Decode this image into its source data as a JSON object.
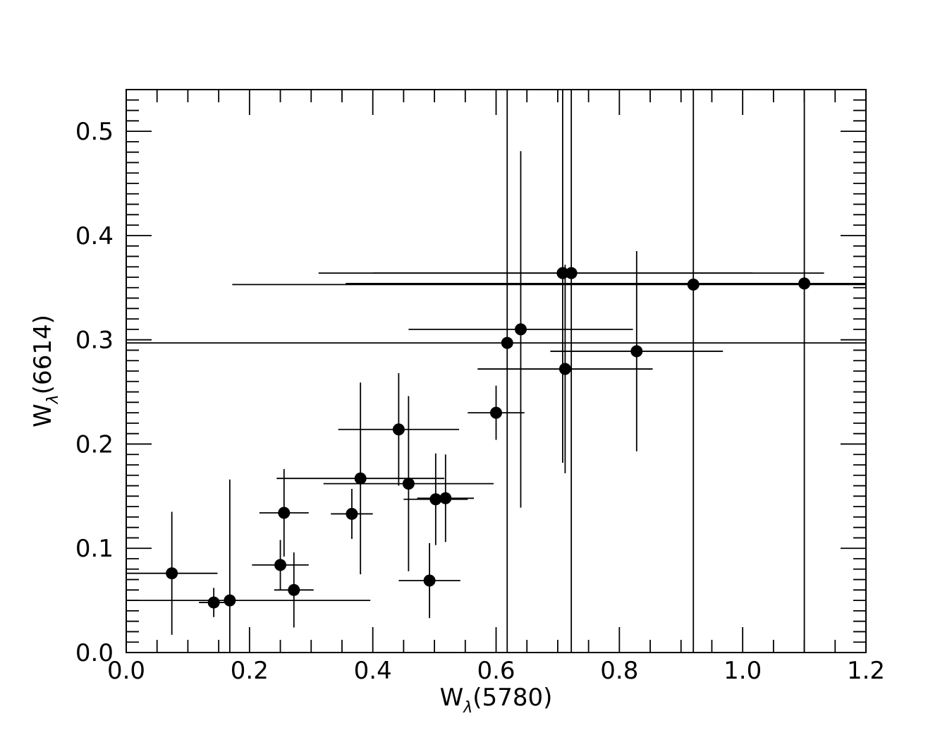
{
  "chart_data": {
    "type": "scatter",
    "title": "",
    "xlabel": {
      "main": "W",
      "sub": "λ",
      "suffix": "(5780)"
    },
    "ylabel": {
      "main": "W",
      "sub": "λ",
      "suffix": "(6614)"
    },
    "xlim": [
      0.0,
      1.2
    ],
    "ylim": [
      0.0,
      0.54
    ],
    "x_ticks": [
      "0.0",
      "0.2",
      "0.4",
      "0.6",
      "0.8",
      "1.0",
      "1.2"
    ],
    "y_ticks": [
      "0.0",
      "0.1",
      "0.2",
      "0.3",
      "0.4",
      "0.5"
    ],
    "grid": false,
    "legend": "none",
    "marker_color": "#000000",
    "points": [
      {
        "x": 0.074,
        "y": 0.076,
        "xerr": 0.074,
        "yerr": 0.059
      },
      {
        "x": 0.142,
        "y": 0.048,
        "xerr": 0.024,
        "yerr": 0.014
      },
      {
        "x": 0.168,
        "y": 0.05,
        "xerr": 0.228,
        "yerr": 0.116
      },
      {
        "x": 0.25,
        "y": 0.084,
        "xerr": 0.046,
        "yerr": 0.024
      },
      {
        "x": 0.256,
        "y": 0.134,
        "xerr": 0.04,
        "yerr": 0.042
      },
      {
        "x": 0.272,
        "y": 0.06,
        "xerr": 0.032,
        "yerr": 0.036
      },
      {
        "x": 0.366,
        "y": 0.133,
        "xerr": 0.034,
        "yerr": 0.024
      },
      {
        "x": 0.38,
        "y": 0.167,
        "xerr": 0.136,
        "yerr": 0.092
      },
      {
        "x": 0.442,
        "y": 0.214,
        "xerr": 0.098,
        "yerr": 0.054
      },
      {
        "x": 0.458,
        "y": 0.162,
        "xerr": 0.138,
        "yerr": 0.084
      },
      {
        "x": 0.492,
        "y": 0.069,
        "xerr": 0.05,
        "yerr": 0.036
      },
      {
        "x": 0.502,
        "y": 0.147,
        "xerr": 0.052,
        "yerr": 0.044
      },
      {
        "x": 0.518,
        "y": 0.148,
        "xerr": 0.046,
        "yerr": 0.042
      },
      {
        "x": 0.6,
        "y": 0.23,
        "xerr": 0.046,
        "yerr": 0.026
      },
      {
        "x": 0.618,
        "y": 0.297,
        "xerr": 0.618,
        "yerr": 0.297
      },
      {
        "x": 0.64,
        "y": 0.31,
        "xerr": 0.182,
        "yerr": 0.171
      },
      {
        "x": 0.708,
        "y": 0.364,
        "xerr": 0.308,
        "yerr": 0.182
      },
      {
        "x": 0.712,
        "y": 0.272,
        "xerr": 0.142,
        "yerr": 0.1
      },
      {
        "x": 0.722,
        "y": 0.364,
        "xerr": 0.41,
        "yerr": 0.364
      },
      {
        "x": 0.828,
        "y": 0.289,
        "xerr": 0.14,
        "yerr": 0.096
      },
      {
        "x": 0.92,
        "y": 0.353,
        "xerr": 0.748,
        "yerr": 0.353
      },
      {
        "x": 1.1,
        "y": 0.354,
        "xerr": 0.744,
        "yerr": 0.354
      }
    ]
  }
}
